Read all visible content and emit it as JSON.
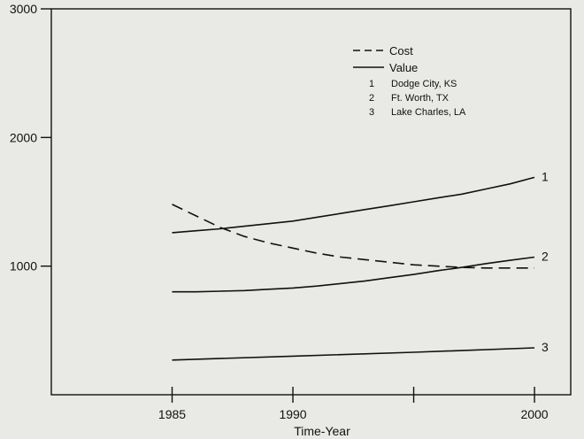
{
  "chart_data": {
    "type": "line",
    "title": "",
    "xlabel": "Time-Year",
    "ylabel": "",
    "xlim": [
      1980,
      2001.5
    ],
    "ylim": [
      0,
      3000
    ],
    "x_ticks": [
      1985,
      1990,
      1995,
      2000
    ],
    "x_tick_labels": [
      "1985",
      "1990",
      "",
      "2000"
    ],
    "y_ticks": [
      1000,
      2000,
      3000
    ],
    "y_tick_labels": [
      "1000",
      "2000",
      "3000"
    ],
    "grid": false,
    "legend_position": "top-right",
    "legend": {
      "styles": [
        {
          "label": "Cost",
          "line": "dashed"
        },
        {
          "label": "Value",
          "line": "solid"
        }
      ],
      "locations": [
        {
          "number": "1",
          "name": "Dodge City, KS"
        },
        {
          "number": "2",
          "name": "Ft. Worth, TX"
        },
        {
          "number": "3",
          "name": "Lake Charles, LA"
        }
      ]
    },
    "series": [
      {
        "style": "dashed",
        "x": [
          1985,
          1986,
          1987,
          1988,
          1989,
          1990,
          1991,
          1992,
          1993,
          1994,
          1995,
          1996,
          1997,
          1998,
          1999,
          2000
        ],
        "values": [
          1480,
          1390,
          1300,
          1230,
          1180,
          1140,
          1100,
          1070,
          1050,
          1030,
          1010,
          1000,
          990,
          985,
          985,
          985
        ]
      },
      {
        "label": "1",
        "style": "solid",
        "x": [
          1985,
          1986,
          1987,
          1988,
          1989,
          1990,
          1991,
          1992,
          1993,
          1994,
          1995,
          1996,
          1997,
          1998,
          1999,
          2000
        ],
        "values": [
          1260,
          1275,
          1290,
          1310,
          1330,
          1350,
          1380,
          1410,
          1440,
          1470,
          1500,
          1530,
          1560,
          1600,
          1640,
          1690
        ]
      },
      {
        "label": "2",
        "style": "solid",
        "x": [
          1985,
          1986,
          1987,
          1988,
          1989,
          1990,
          1991,
          1992,
          1993,
          1994,
          1995,
          1996,
          1997,
          1998,
          1999,
          2000
        ],
        "values": [
          800,
          800,
          805,
          810,
          820,
          830,
          845,
          865,
          885,
          910,
          935,
          965,
          990,
          1020,
          1045,
          1070
        ]
      },
      {
        "label": "3",
        "style": "solid",
        "x": [
          1985,
          1990,
          1995,
          2000
        ],
        "values": [
          270,
          300,
          330,
          365
        ]
      }
    ]
  },
  "colors": {
    "background": "#e9e9e6",
    "ink": "#111111"
  }
}
